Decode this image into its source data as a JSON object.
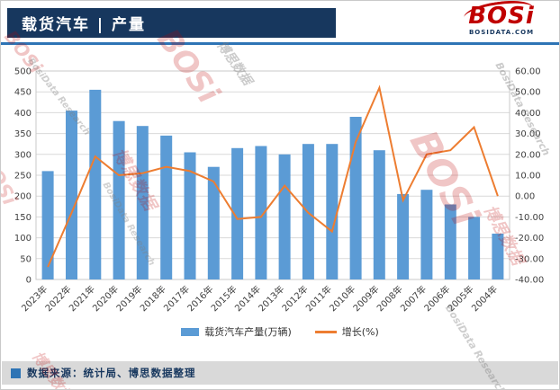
{
  "header": {
    "title": "载货汽车 | 产量",
    "logo_text": "BOSi",
    "logo_sub": "BOSIDATA.COM"
  },
  "chart_data": {
    "type": "bar",
    "subtype": "combo-bar-line",
    "title": "载货汽车 | 产量",
    "categories": [
      "2023年",
      "2022年",
      "2021年",
      "2020年",
      "2019年",
      "2018年",
      "2017年",
      "2016年",
      "2015年",
      "2014年",
      "2013年",
      "2012年",
      "2011年",
      "2010年",
      "2009年",
      "2008年",
      "2007年",
      "2006年",
      "2005年",
      "2004年"
    ],
    "series": [
      {
        "name": "载货汽车产量(万辆)",
        "type": "bar",
        "axis": "left",
        "color": "#5B9BD5",
        "values": [
          260,
          405,
          455,
          380,
          368,
          345,
          305,
          270,
          315,
          320,
          300,
          325,
          325,
          390,
          310,
          205,
          215,
          180,
          150,
          110
        ]
      },
      {
        "name": "增长(%)",
        "type": "line",
        "axis": "right",
        "color": "#ED7D31",
        "values": [
          -34,
          -8,
          19,
          10,
          11,
          14,
          12,
          7,
          -11,
          -10,
          5,
          -8,
          -17,
          26,
          52,
          -2,
          20,
          22,
          33,
          0
        ]
      }
    ],
    "left_axis": {
      "min": 0,
      "max": 500,
      "step": 50,
      "tick_labels": [
        "0",
        "50",
        "100",
        "150",
        "200",
        "250",
        "300",
        "350",
        "400",
        "450",
        "500"
      ]
    },
    "right_axis": {
      "min": -40,
      "max": 60,
      "step": 10,
      "tick_labels": [
        "-40.00",
        "-30.00",
        "-20.00",
        "-10.00",
        "0.00",
        "10.00",
        "20.00",
        "30.00",
        "40.00",
        "50.00",
        "60.00"
      ]
    },
    "grid": true,
    "legend_position": "bottom"
  },
  "legend": {
    "items": [
      {
        "label": "载货汽车产量(万辆)",
        "color": "#5B9BD5",
        "marker": "bar"
      },
      {
        "label": "增长(%)",
        "color": "#ED7D31",
        "marker": "line"
      }
    ]
  },
  "footer": {
    "source": "数据来源：统计局、博思数据整理"
  },
  "watermark": {
    "brand": "BOSi",
    "brand_cn": "博思数据",
    "research": "BosiData Research"
  },
  "colors": {
    "bar": "#5B9BD5",
    "line": "#ED7D31",
    "header_bg": "#17375E",
    "header_rule": "#2E74B5",
    "footer_bg": "#D9D9D9",
    "logo_red": "#C00000",
    "grid": "#D9D9D9"
  }
}
